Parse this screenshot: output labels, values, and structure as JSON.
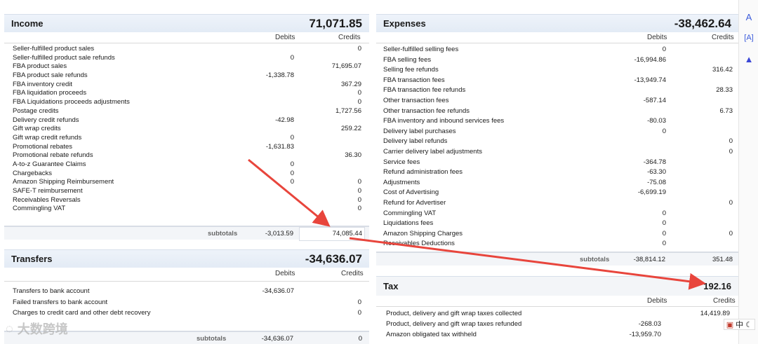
{
  "columns": {
    "debits": "Debits",
    "credits": "Credits"
  },
  "subtotals_label": "subtotals",
  "income": {
    "title": "Income",
    "total": "71,071.85",
    "rows": [
      {
        "label": "Seller-fulfilled product sales",
        "debit": "",
        "credit": "0"
      },
      {
        "label": "Seller-fulfilled product sale refunds",
        "debit": "0",
        "credit": ""
      },
      {
        "label": "FBA product sales",
        "debit": "",
        "credit": "71,695.07"
      },
      {
        "label": "FBA product sale refunds",
        "debit": "-1,338.78",
        "credit": ""
      },
      {
        "label": "FBA inventory credit",
        "debit": "",
        "credit": "367.29"
      },
      {
        "label": "FBA liquidation proceeds",
        "debit": "",
        "credit": "0"
      },
      {
        "label": "FBA Liquidations proceeds adjustments",
        "debit": "",
        "credit": "0"
      },
      {
        "label": "Postage credits",
        "debit": "",
        "credit": "1,727.56"
      },
      {
        "label": "Delivery credit refunds",
        "debit": "-42.98",
        "credit": ""
      },
      {
        "label": "Gift wrap credits",
        "debit": "",
        "credit": "259.22"
      },
      {
        "label": "Gift wrap credit refunds",
        "debit": "0",
        "credit": ""
      },
      {
        "label": "Promotional rebates",
        "debit": "-1,631.83",
        "credit": ""
      },
      {
        "label": "Promotional rebate refunds",
        "debit": "",
        "credit": "36.30"
      },
      {
        "label": "A-to-z Guarantee Claims",
        "debit": "0",
        "credit": ""
      },
      {
        "label": "Chargebacks",
        "debit": "0",
        "credit": ""
      },
      {
        "label": "Amazon Shipping Reimbursement",
        "debit": "0",
        "credit": "0"
      },
      {
        "label": "SAFE-T reimbursement",
        "debit": "",
        "credit": "0"
      },
      {
        "label": "Receivables Reversals",
        "debit": "",
        "credit": "0"
      },
      {
        "label": "Commingling VAT",
        "debit": "",
        "credit": "0"
      }
    ],
    "subtotal_debit": "-3,013.59",
    "subtotal_credit": "74,085.44"
  },
  "transfers": {
    "title": "Transfers",
    "total": "-34,636.07",
    "rows": [
      {
        "label": "Transfers to bank account",
        "debit": "-34,636.07",
        "credit": ""
      },
      {
        "label": "Failed transfers to bank account",
        "debit": "",
        "credit": "0"
      },
      {
        "label": "Charges to credit card and other debt recovery",
        "debit": "",
        "credit": "0"
      }
    ],
    "subtotal_debit": "-34,636.07",
    "subtotal_credit": "0"
  },
  "expenses": {
    "title": "Expenses",
    "total": "-38,462.64",
    "rows": [
      {
        "label": "Seller-fulfilled selling fees",
        "debit": "0",
        "credit": ""
      },
      {
        "label": "FBA selling fees",
        "debit": "-16,994.86",
        "credit": ""
      },
      {
        "label": "Selling fee refunds",
        "debit": "",
        "credit": "316.42"
      },
      {
        "label": "FBA transaction fees",
        "debit": "-13,949.74",
        "credit": ""
      },
      {
        "label": "FBA transaction fee refunds",
        "debit": "",
        "credit": "28.33"
      },
      {
        "label": "Other transaction fees",
        "debit": "-587.14",
        "credit": ""
      },
      {
        "label": "Other transaction fee refunds",
        "debit": "",
        "credit": "6.73"
      },
      {
        "label": "FBA inventory and inbound services fees",
        "debit": "-80.03",
        "credit": ""
      },
      {
        "label": "Delivery label purchases",
        "debit": "0",
        "credit": ""
      },
      {
        "label": "Delivery label refunds",
        "debit": "",
        "credit": "0"
      },
      {
        "label": "Carrier delivery label adjustments",
        "debit": "",
        "credit": "0"
      },
      {
        "label": "Service fees",
        "debit": "-364.78",
        "credit": ""
      },
      {
        "label": "Refund administration fees",
        "debit": "-63.30",
        "credit": ""
      },
      {
        "label": "Adjustments",
        "debit": "-75.08",
        "credit": ""
      },
      {
        "label": "Cost of Advertising",
        "debit": "-6,699.19",
        "credit": ""
      },
      {
        "label": "Refund for Advertiser",
        "debit": "",
        "credit": "0"
      },
      {
        "label": "Commingling VAT",
        "debit": "0",
        "credit": ""
      },
      {
        "label": "Liquidations fees",
        "debit": "0",
        "credit": ""
      },
      {
        "label": "Amazon Shipping Charges",
        "debit": "0",
        "credit": "0"
      },
      {
        "label": "Receivables Deductions",
        "debit": "0",
        "credit": ""
      }
    ],
    "subtotal_debit": "-38,814.12",
    "subtotal_credit": "351.48"
  },
  "tax": {
    "title": "Tax",
    "total": "192.16",
    "rows": [
      {
        "label": "Product, delivery and gift wrap taxes collected",
        "debit": "",
        "credit": "14,419.89"
      },
      {
        "label": "Product, delivery and gift wrap taxes refunded",
        "debit": "-268.03",
        "credit": ""
      },
      {
        "label": "Amazon obligated tax withheld",
        "debit": "-13,959.70",
        "credit": ""
      }
    ]
  },
  "watermark": {
    "text": "大数跨境"
  },
  "ime": {
    "label": "中"
  },
  "colors": {
    "arrow": "#e8453c",
    "header_bg": "#e7eef8"
  }
}
